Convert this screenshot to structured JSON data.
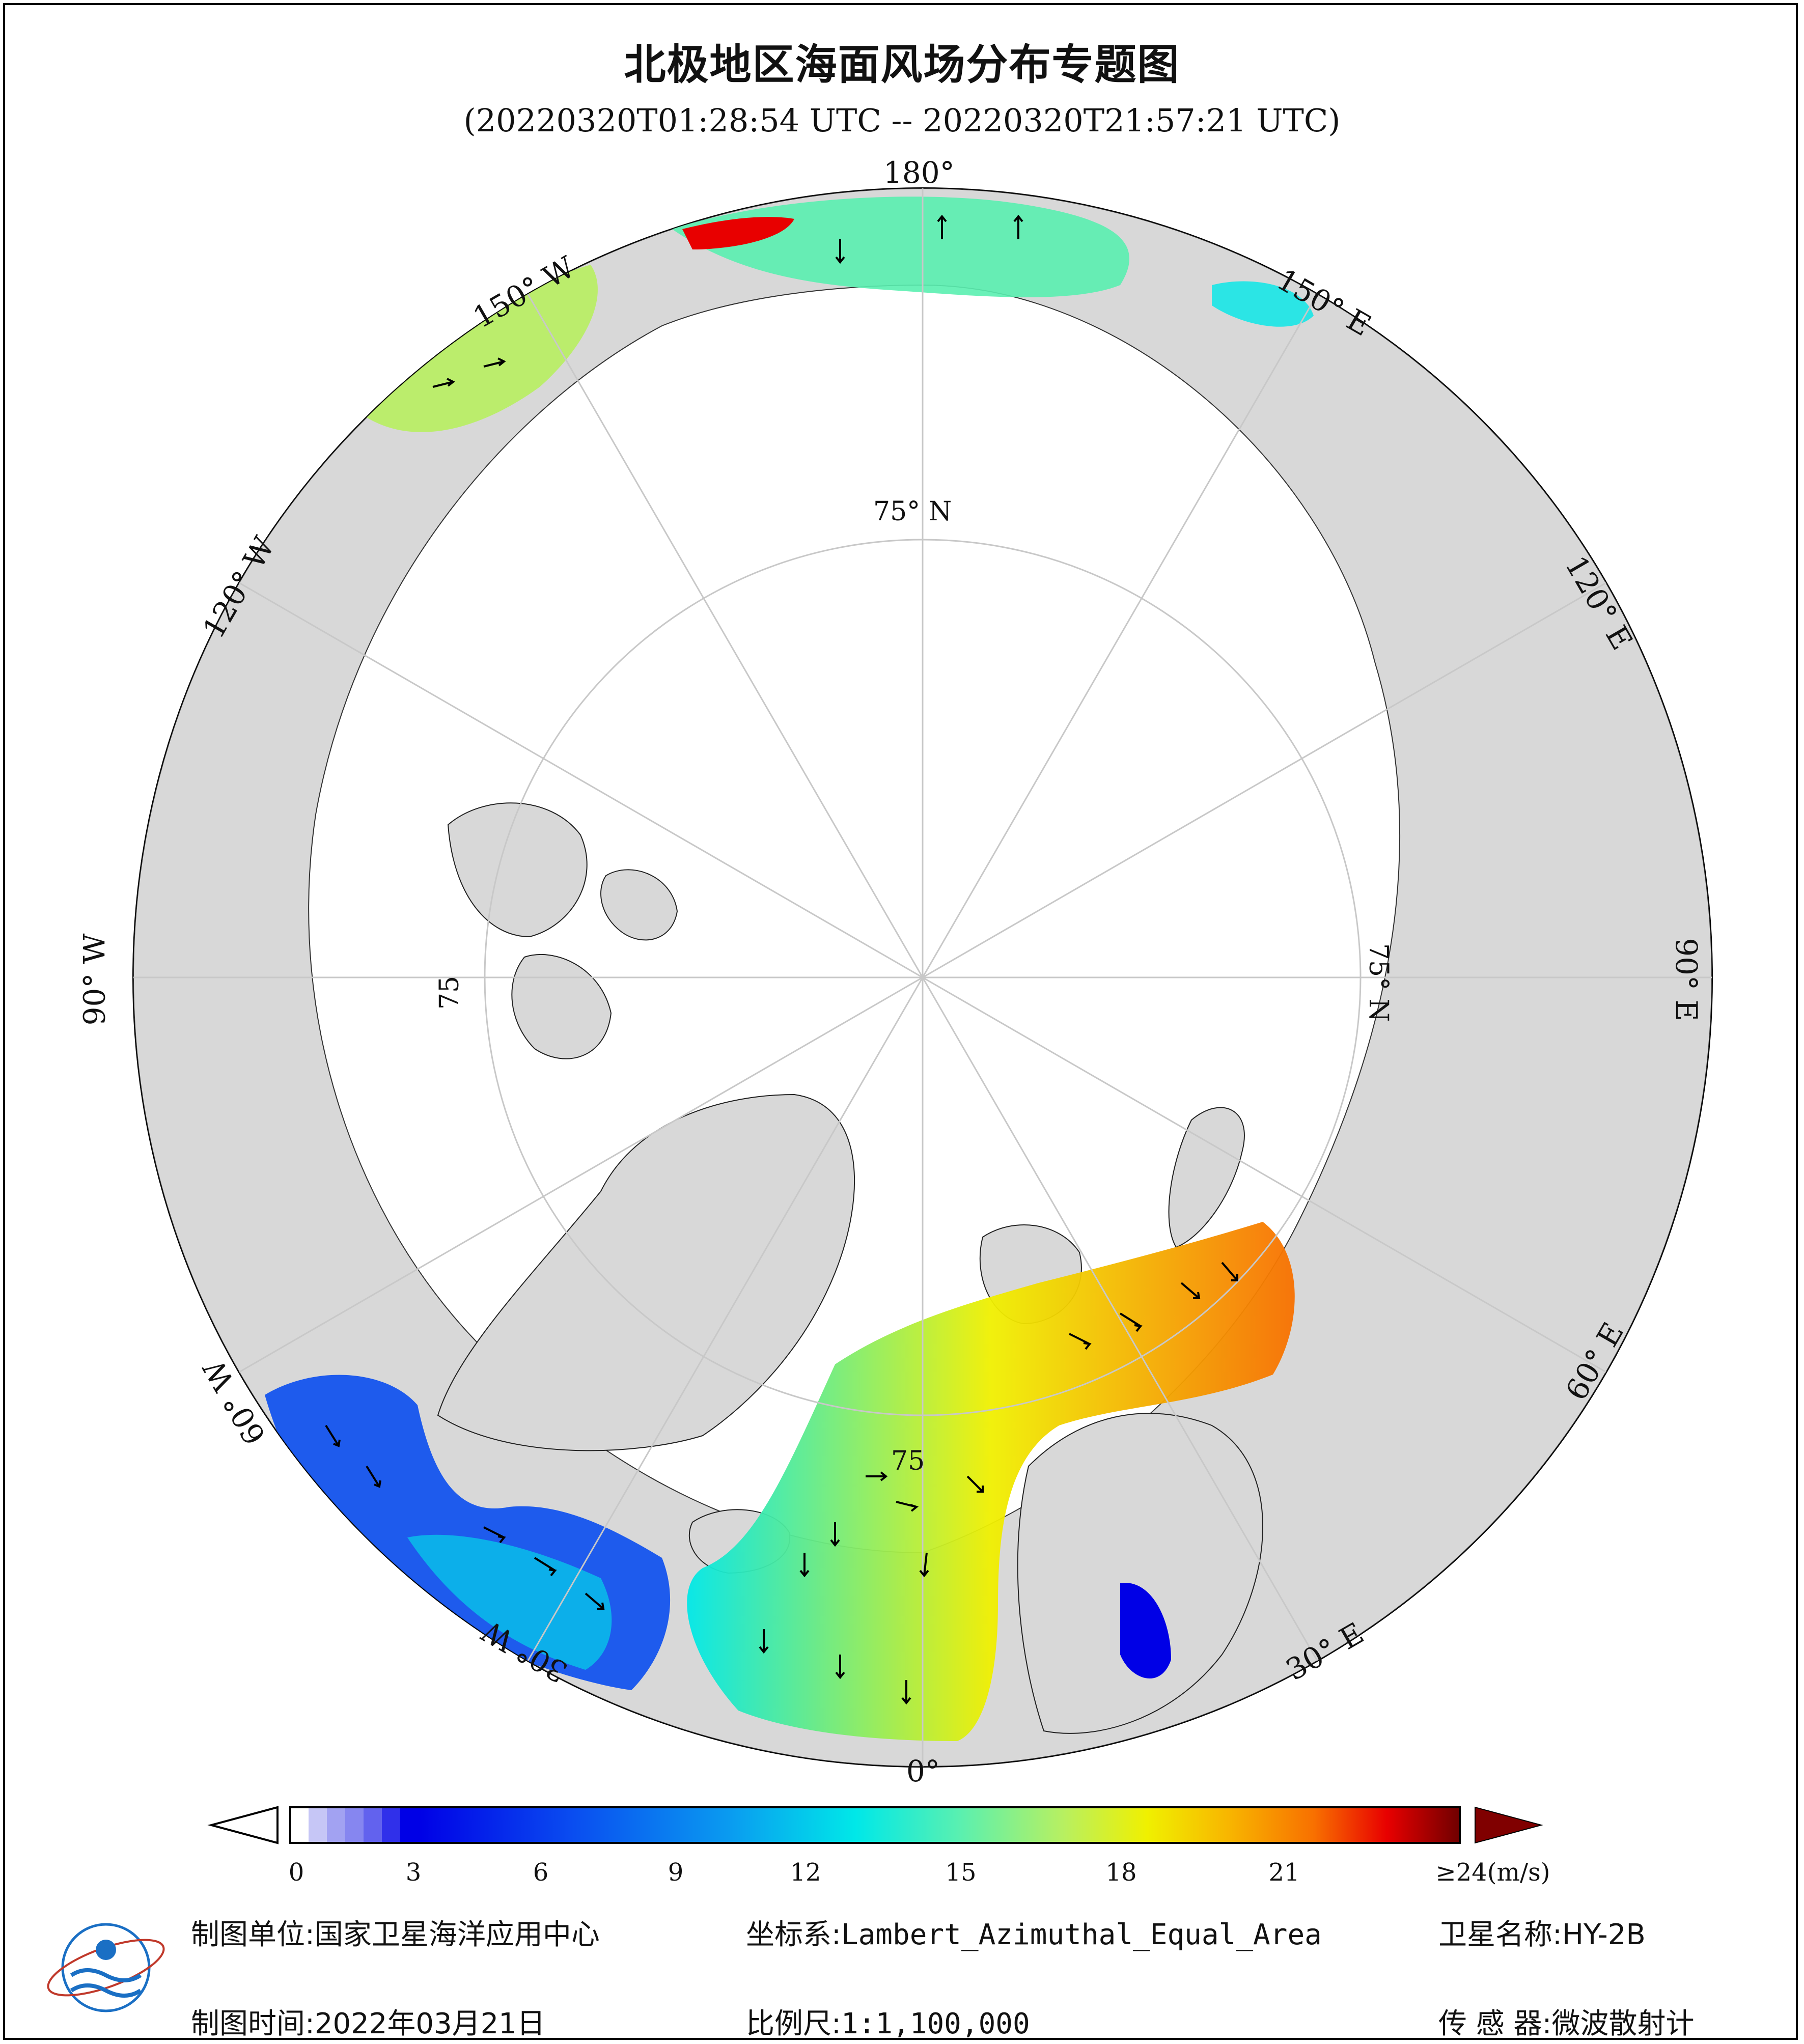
{
  "title": "北极地区海面风场分布专题图",
  "subtitle": "(20220320T01:28:54 UTC -- 20220320T21:57:21 UTC)",
  "map": {
    "projection_label": "Lambert_Azimuthal_Equal_Area",
    "longitude_labels": [
      "180°",
      "150° E",
      "120° E",
      "90° E",
      "60° E",
      "30° E",
      "0°",
      "30° W",
      "60° W",
      "90° W",
      "120° W",
      "150° W"
    ],
    "latitude_labels": [
      "75° N",
      "75° N",
      "75",
      "75"
    ],
    "colors": {
      "land": "#d8d8d8",
      "ocean": "#ffffff",
      "graticule": "#c8c8c8",
      "arrow": "#000000"
    }
  },
  "colorbar": {
    "unit_label": "≥24(m/s)",
    "ticks": [
      "0",
      "3",
      "6",
      "9",
      "12",
      "15",
      "18",
      "21"
    ],
    "tick_values": [
      0,
      3,
      6,
      9,
      12,
      15,
      18,
      21
    ],
    "range": [
      0,
      24
    ],
    "stops": [
      "#ffffff",
      "#c6c6f6",
      "#6c6cf0",
      "#0000e6",
      "#0a4ef0",
      "#0a9cf0",
      "#00e8e8",
      "#5af0b0",
      "#b8f060",
      "#f0f000",
      "#f8b400",
      "#f87000",
      "#e80000",
      "#a00000",
      "#700000"
    ],
    "under_color": "#ffffff",
    "over_color": "#800000"
  },
  "footer": {
    "unit_label": "制图单位:",
    "unit_value": "国家卫星海洋应用中心",
    "crs_label": "坐标系:",
    "crs_value": "Lambert_Azimuthal_Equal_Area",
    "satellite_label": "卫星名称:",
    "satellite_value": "HY-2B",
    "date_label": "制图时间:",
    "date_value": "2022年03月21日",
    "scale_label": "比例尺:",
    "scale_value": "1:1,100,000",
    "sensor_label": "传 感 器:",
    "sensor_value": "微波散射计"
  },
  "logo": {
    "icon": "nsoas-logo-icon"
  }
}
